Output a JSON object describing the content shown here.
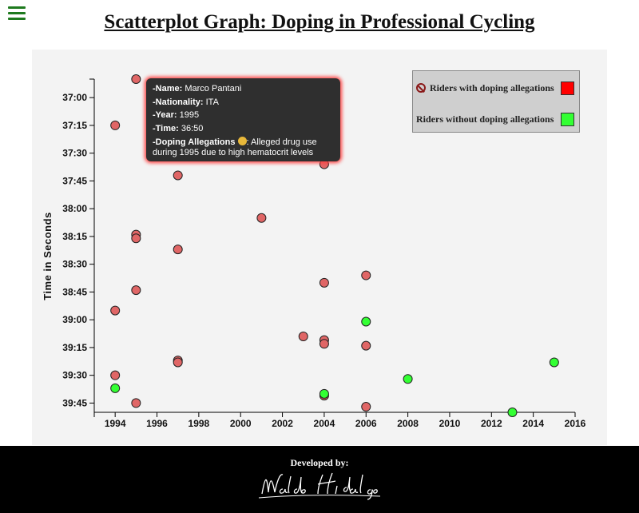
{
  "page": {
    "title": "Scatterplot Graph: Doping in Professional Cycling"
  },
  "legend": {
    "doping_label": "Riders with doping allegations",
    "clean_label": "Riders without doping allegations",
    "doping_color": "#ff0000",
    "clean_color": "#33ff33",
    "position": "top-right"
  },
  "tooltip": {
    "name_label": "-Name:",
    "name": "Marco Pantani",
    "nationality_label": "-Nationality:",
    "nationality": "ITA",
    "year_label": "-Year:",
    "year": "1995",
    "time_label": "-Time:",
    "time": "36:50",
    "doping_label": "-Doping Allegations",
    "doping_line1": ": Alleged drug use",
    "doping_line2": "during 1995 due to high hematocrit levels"
  },
  "footer": {
    "developed_by": "Developed by:",
    "signature": "Waldo Hidalgo"
  },
  "chart_data": {
    "type": "scatter",
    "title": "",
    "xlabel": "",
    "ylabel": "Time in Seconds",
    "xlim": [
      1993,
      2016
    ],
    "ylim": [
      "36:50",
      "39:50"
    ],
    "x_ticks": [
      "1994",
      "1996",
      "1998",
      "2000",
      "2002",
      "2004",
      "2006",
      "2008",
      "2010",
      "2012",
      "2014",
      "2016"
    ],
    "y_ticks": [
      "37:00",
      "37:15",
      "37:30",
      "37:45",
      "38:00",
      "38:15",
      "38:30",
      "38:45",
      "39:00",
      "39:15",
      "39:30",
      "39:45"
    ],
    "grid": false,
    "series": [
      {
        "name": "Riders with doping allegations",
        "color": "#e06666",
        "points": [
          {
            "x": 1995,
            "y": "36:50"
          },
          {
            "x": 1997,
            "y": "36:55"
          },
          {
            "x": 1994,
            "y": "37:15"
          },
          {
            "x": 2004,
            "y": "37:36"
          },
          {
            "x": 1997,
            "y": "37:42"
          },
          {
            "x": 2001,
            "y": "38:05"
          },
          {
            "x": 1995,
            "y": "38:14"
          },
          {
            "x": 1995,
            "y": "38:16"
          },
          {
            "x": 1997,
            "y": "38:22"
          },
          {
            "x": 2006,
            "y": "38:36"
          },
          {
            "x": 2004,
            "y": "38:40"
          },
          {
            "x": 1995,
            "y": "38:44"
          },
          {
            "x": 1994,
            "y": "38:55"
          },
          {
            "x": 2003,
            "y": "39:09"
          },
          {
            "x": 2004,
            "y": "39:11"
          },
          {
            "x": 2004,
            "y": "39:13"
          },
          {
            "x": 2006,
            "y": "39:14"
          },
          {
            "x": 1997,
            "y": "39:22"
          },
          {
            "x": 1997,
            "y": "39:23"
          },
          {
            "x": 1994,
            "y": "39:30"
          },
          {
            "x": 2004,
            "y": "39:41"
          },
          {
            "x": 1995,
            "y": "39:45"
          },
          {
            "x": 2006,
            "y": "39:47"
          }
        ]
      },
      {
        "name": "Riders without doping allegations",
        "color": "#33ff33",
        "points": [
          {
            "x": 2006,
            "y": "39:01"
          },
          {
            "x": 2015,
            "y": "39:23"
          },
          {
            "x": 2008,
            "y": "39:32"
          },
          {
            "x": 1994,
            "y": "39:37"
          },
          {
            "x": 2004,
            "y": "39:40"
          },
          {
            "x": 2013,
            "y": "39:50"
          }
        ]
      }
    ]
  }
}
